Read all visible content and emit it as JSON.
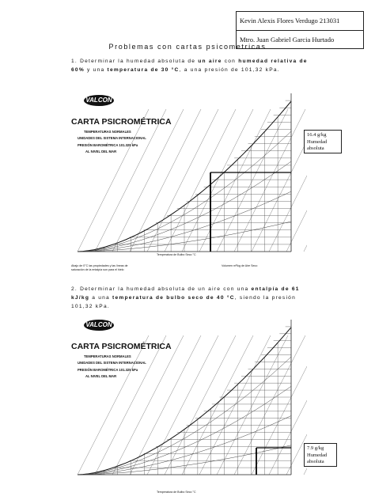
{
  "header": {
    "student": "Kevin Alexis Flores Verdugo 213031",
    "teacher": "Mtro. Juan Gabriel Garcia Hurtado"
  },
  "title": "Problemas con cartas psicometricas",
  "problems": [
    {
      "number": "1.",
      "parts": [
        "Determinar la humedad absoluta de ",
        "un aire",
        " con ",
        "humedad relativa de 60%",
        " y una ",
        "temperatura de 30 °C",
        ", a una presión de 101,32 kPa."
      ],
      "callout": [
        "16.4 g/kg",
        "Humedad",
        "absoluta"
      ]
    },
    {
      "number": "2.",
      "parts": [
        "Determinar la humedad absoluta de un aire con una ",
        "entalpía de 61 kJ/kg",
        " a una ",
        "temperatura de bulbo seco de 40 °C",
        ", siendo la presión 101,32 kPa."
      ],
      "callout": [
        "7.9 g/kg",
        "Humedad",
        "absoluta"
      ]
    }
  ],
  "chart_labels": {
    "brand": "VALCON",
    "title": "CARTA PSICROMÉTRICA",
    "subtitle": "TEMPERATURAS NORMALES",
    "units": "UNIDADES DEL SISTEMA INTERNACIONAL",
    "pressure": "PRESIÓN BAROMÉTRICA     101.325 kPa",
    "altitude": "AL NIVEL DEL MAR",
    "xaxis": "Temperatura de Bulbo Seco  °C",
    "volume": "Volumen   m³/kg de Aire Seco",
    "footnote1": "Abajo de 0°C las propiedades y las líneas de",
    "footnote2": "saturación de la entalpía son para el hielo"
  }
}
